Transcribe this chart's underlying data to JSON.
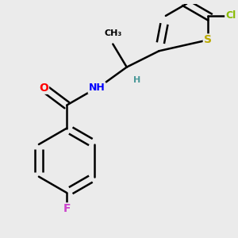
{
  "bg_color": "#ebebeb",
  "atom_colors": {
    "C": "#000000",
    "H": "#4a9999",
    "N": "#0000ff",
    "O": "#ff0000",
    "F": "#cc44cc",
    "Cl": "#88bb00",
    "S": "#bbaa00"
  },
  "bond_color": "#000000",
  "bond_width": 1.8,
  "fig_width": 3.0,
  "fig_height": 3.0,
  "dpi": 100,
  "xlim": [
    0.0,
    1.0
  ],
  "ylim": [
    0.0,
    1.0
  ]
}
